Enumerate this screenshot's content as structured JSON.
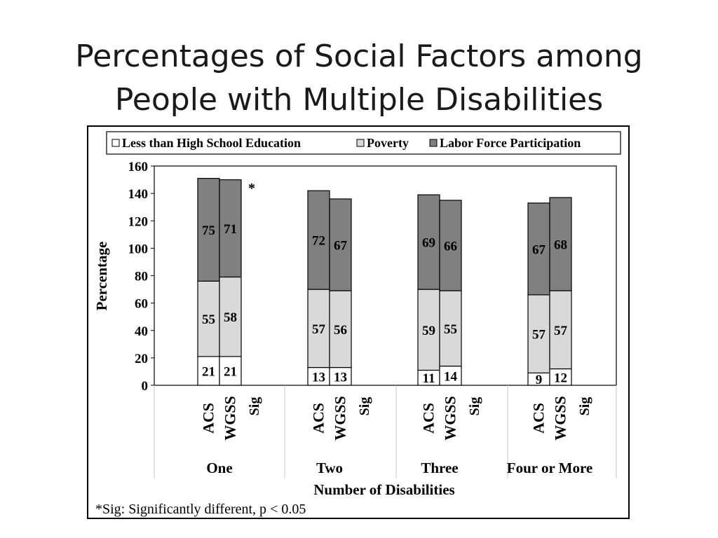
{
  "slide": {
    "title_line1": "Percentages of Social Factors among",
    "title_line2": "People with Multiple Disabilities"
  },
  "chart_data": {
    "type": "bar",
    "stacked": true,
    "title": "",
    "xlabel": "Number of Disabilities",
    "ylabel": "Percentage",
    "ylim": [
      0,
      160
    ],
    "yticks": [
      0,
      20,
      40,
      60,
      80,
      100,
      120,
      140,
      160
    ],
    "legend_position": "top",
    "groups": [
      "One",
      "Two",
      "Three",
      "Four or More"
    ],
    "bar_labels": [
      "ACS",
      "WGSS"
    ],
    "sig_label": "Sig",
    "series": [
      {
        "name": "Less than High School Education",
        "color": "#ffffff",
        "values": {
          "One": [
            21,
            21
          ],
          "Two": [
            13,
            13
          ],
          "Three": [
            11,
            14
          ],
          "Four or More": [
            9,
            12
          ]
        }
      },
      {
        "name": "Poverty",
        "color": "#d9d9d9",
        "values": {
          "One": [
            55,
            58
          ],
          "Two": [
            57,
            56
          ],
          "Three": [
            59,
            55
          ],
          "Four or More": [
            57,
            57
          ]
        }
      },
      {
        "name": "Labor Force Participation",
        "color": "#808080",
        "values": {
          "One": [
            75,
            71
          ],
          "Two": [
            72,
            67
          ],
          "Three": [
            69,
            66
          ],
          "Four or More": [
            67,
            68
          ]
        }
      }
    ],
    "significance": [
      {
        "group": "One",
        "series": "Labor Force Participation",
        "marker": "*"
      }
    ],
    "footnote": "*Sig: Significantly different,  p < 0.05"
  }
}
